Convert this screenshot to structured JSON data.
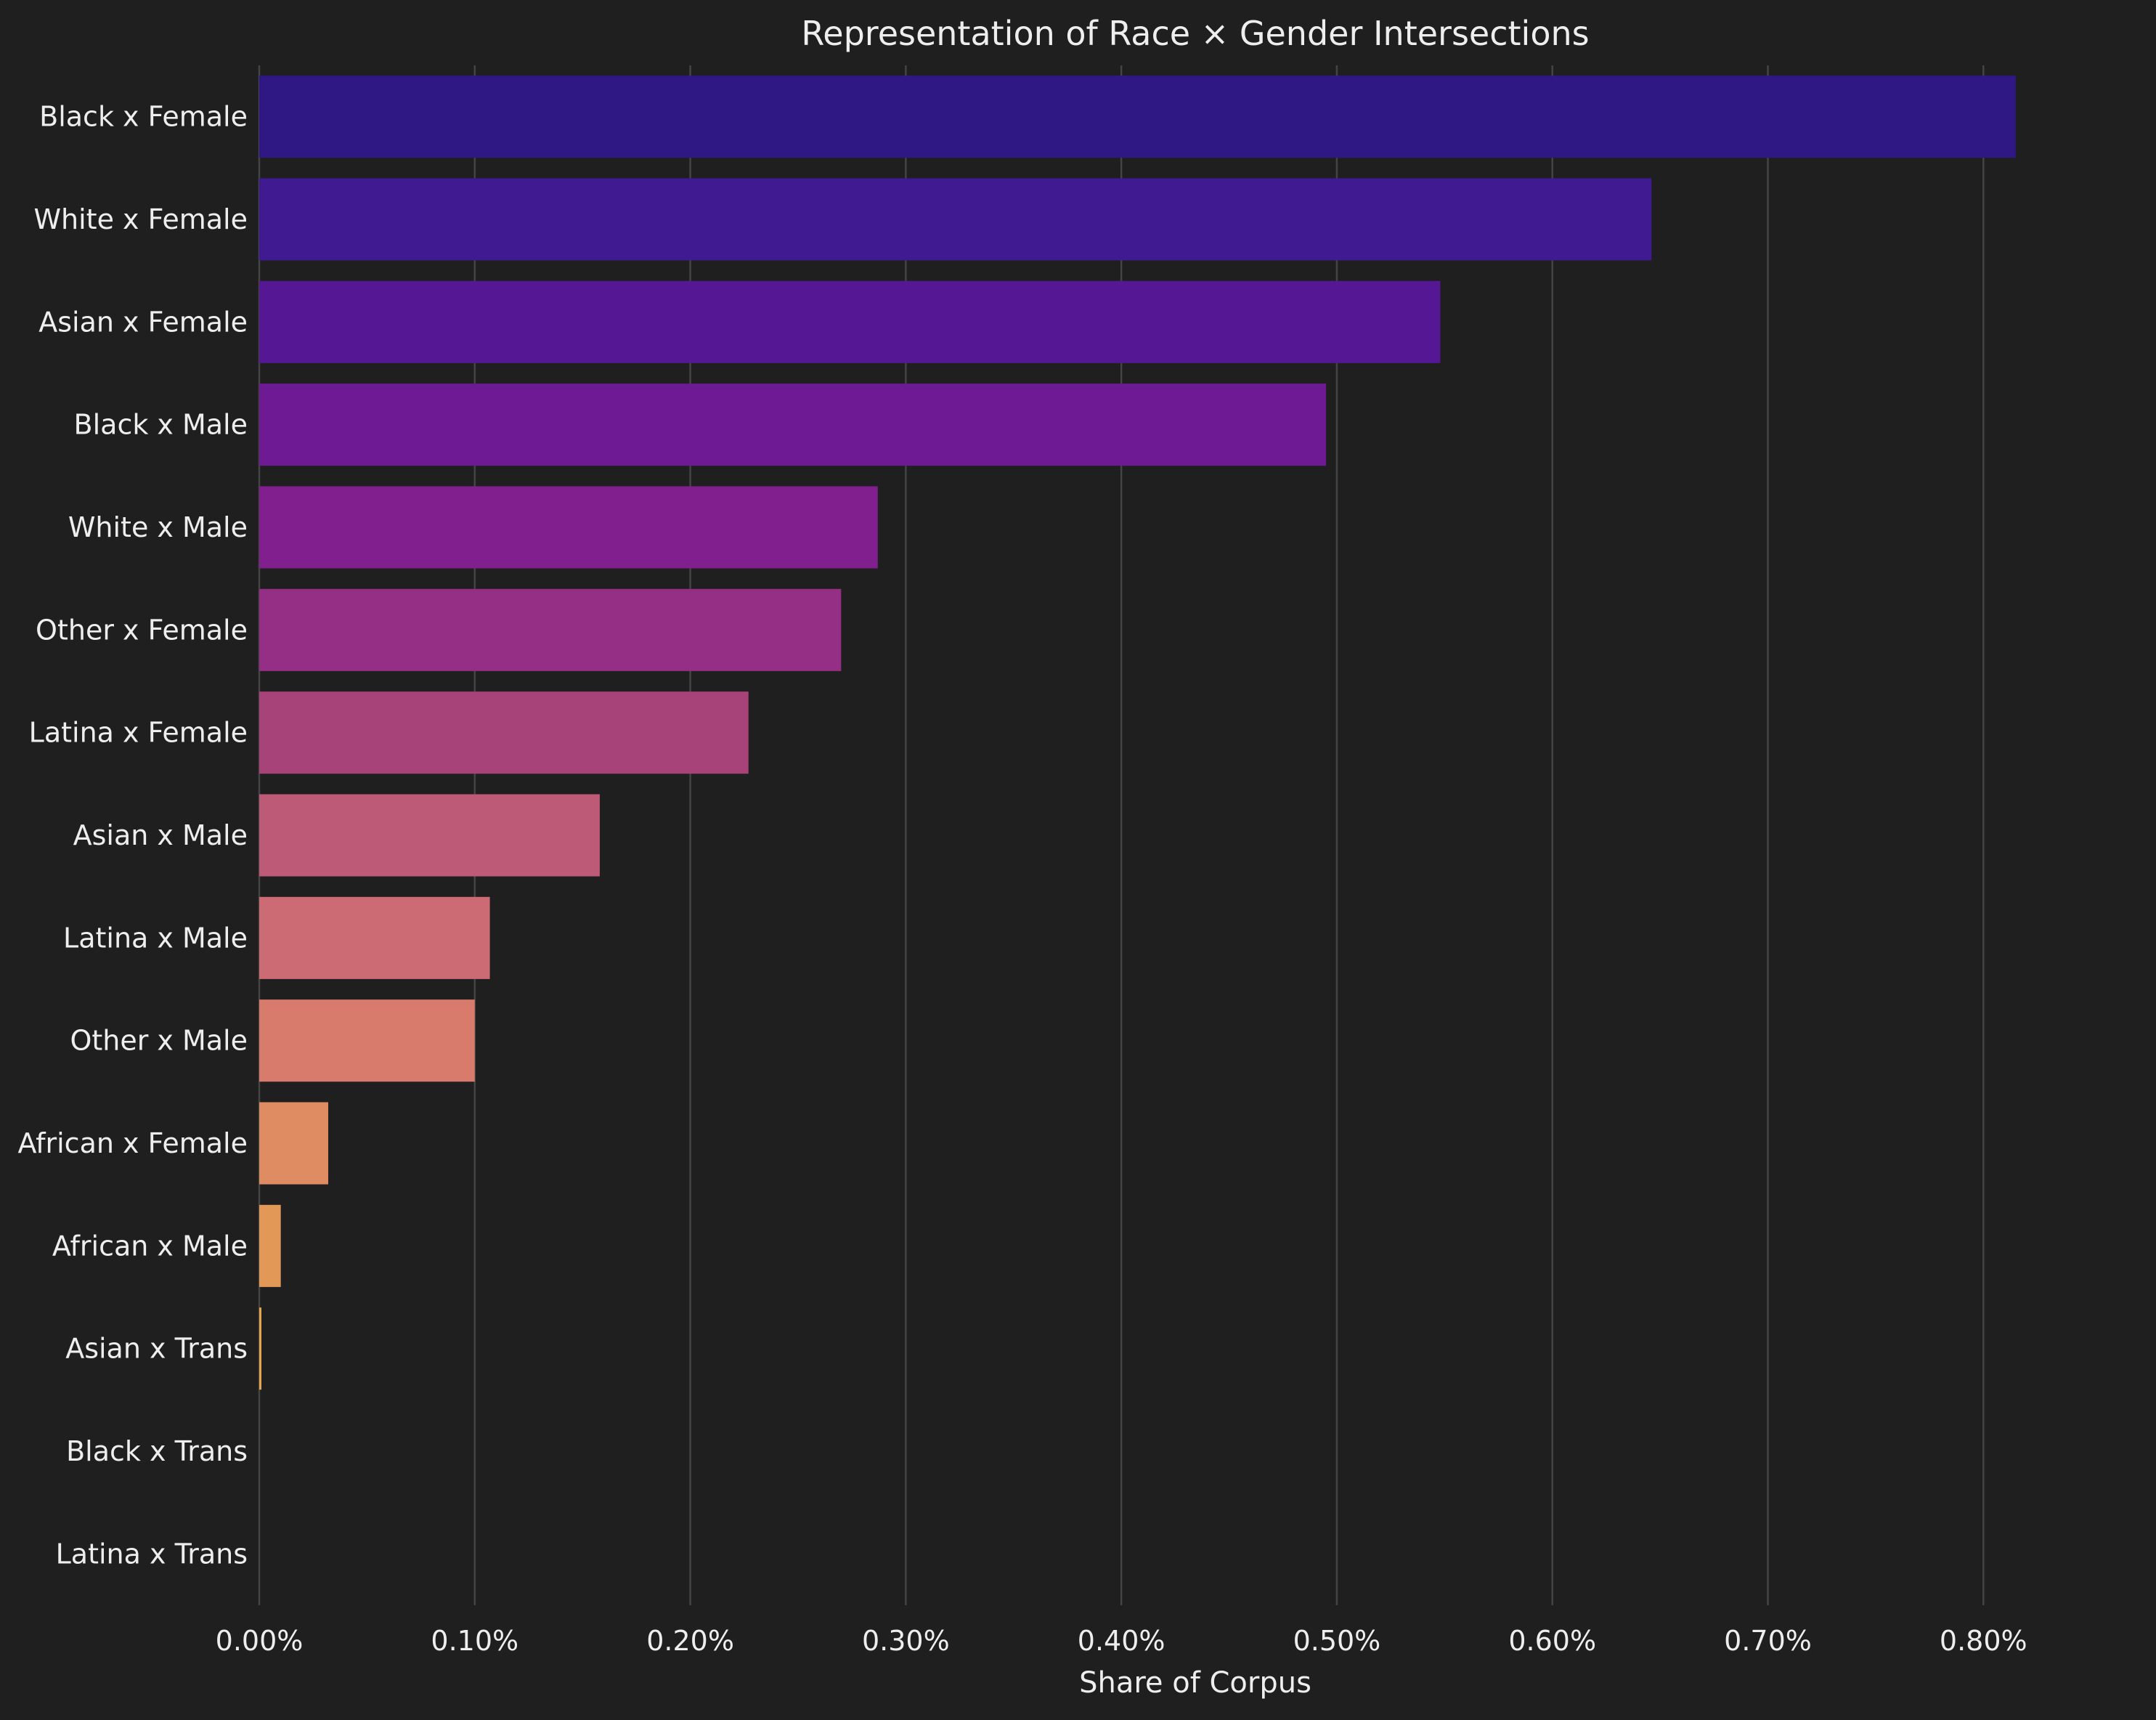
{
  "chart_data": {
    "type": "bar",
    "orientation": "horizontal",
    "title": "Representation of Race × Gender Intersections",
    "xlabel": "Share of Corpus",
    "ylabel": "",
    "xlim": [
      0,
      0.84
    ],
    "x_ticks": [
      0,
      0.1,
      0.2,
      0.3,
      0.4,
      0.5,
      0.6,
      0.7,
      0.8
    ],
    "x_tick_labels": [
      "0.00%",
      "0.10%",
      "0.20%",
      "0.30%",
      "0.40%",
      "0.50%",
      "0.60%",
      "0.70%",
      "0.80%"
    ],
    "grid": "vertical",
    "categories": [
      "Black x Female",
      "White x Female",
      "Asian x Female",
      "Black x Male",
      "White x Male",
      "Other x Female",
      "Latina x Female",
      "Asian x Male",
      "Latina x Male",
      "Other x Male",
      "African x Female",
      "African x Male",
      "Asian x Trans",
      "Black x Trans",
      "Latina x Trans"
    ],
    "values": [
      0.815,
      0.646,
      0.548,
      0.495,
      0.287,
      0.27,
      0.227,
      0.158,
      0.107,
      0.1,
      0.032,
      0.01,
      0.001,
      0.0,
      0.0
    ],
    "colors": [
      "#2f1884",
      "#3f1a90",
      "#561794",
      "#6d1a94",
      "#801f8d",
      "#952f85",
      "#a8437a",
      "#bd5a77",
      "#cc6b74",
      "#d87b6c",
      "#e08c63",
      "#e29958",
      "#e6a84e",
      "#eab54a",
      "#eec247"
    ]
  }
}
